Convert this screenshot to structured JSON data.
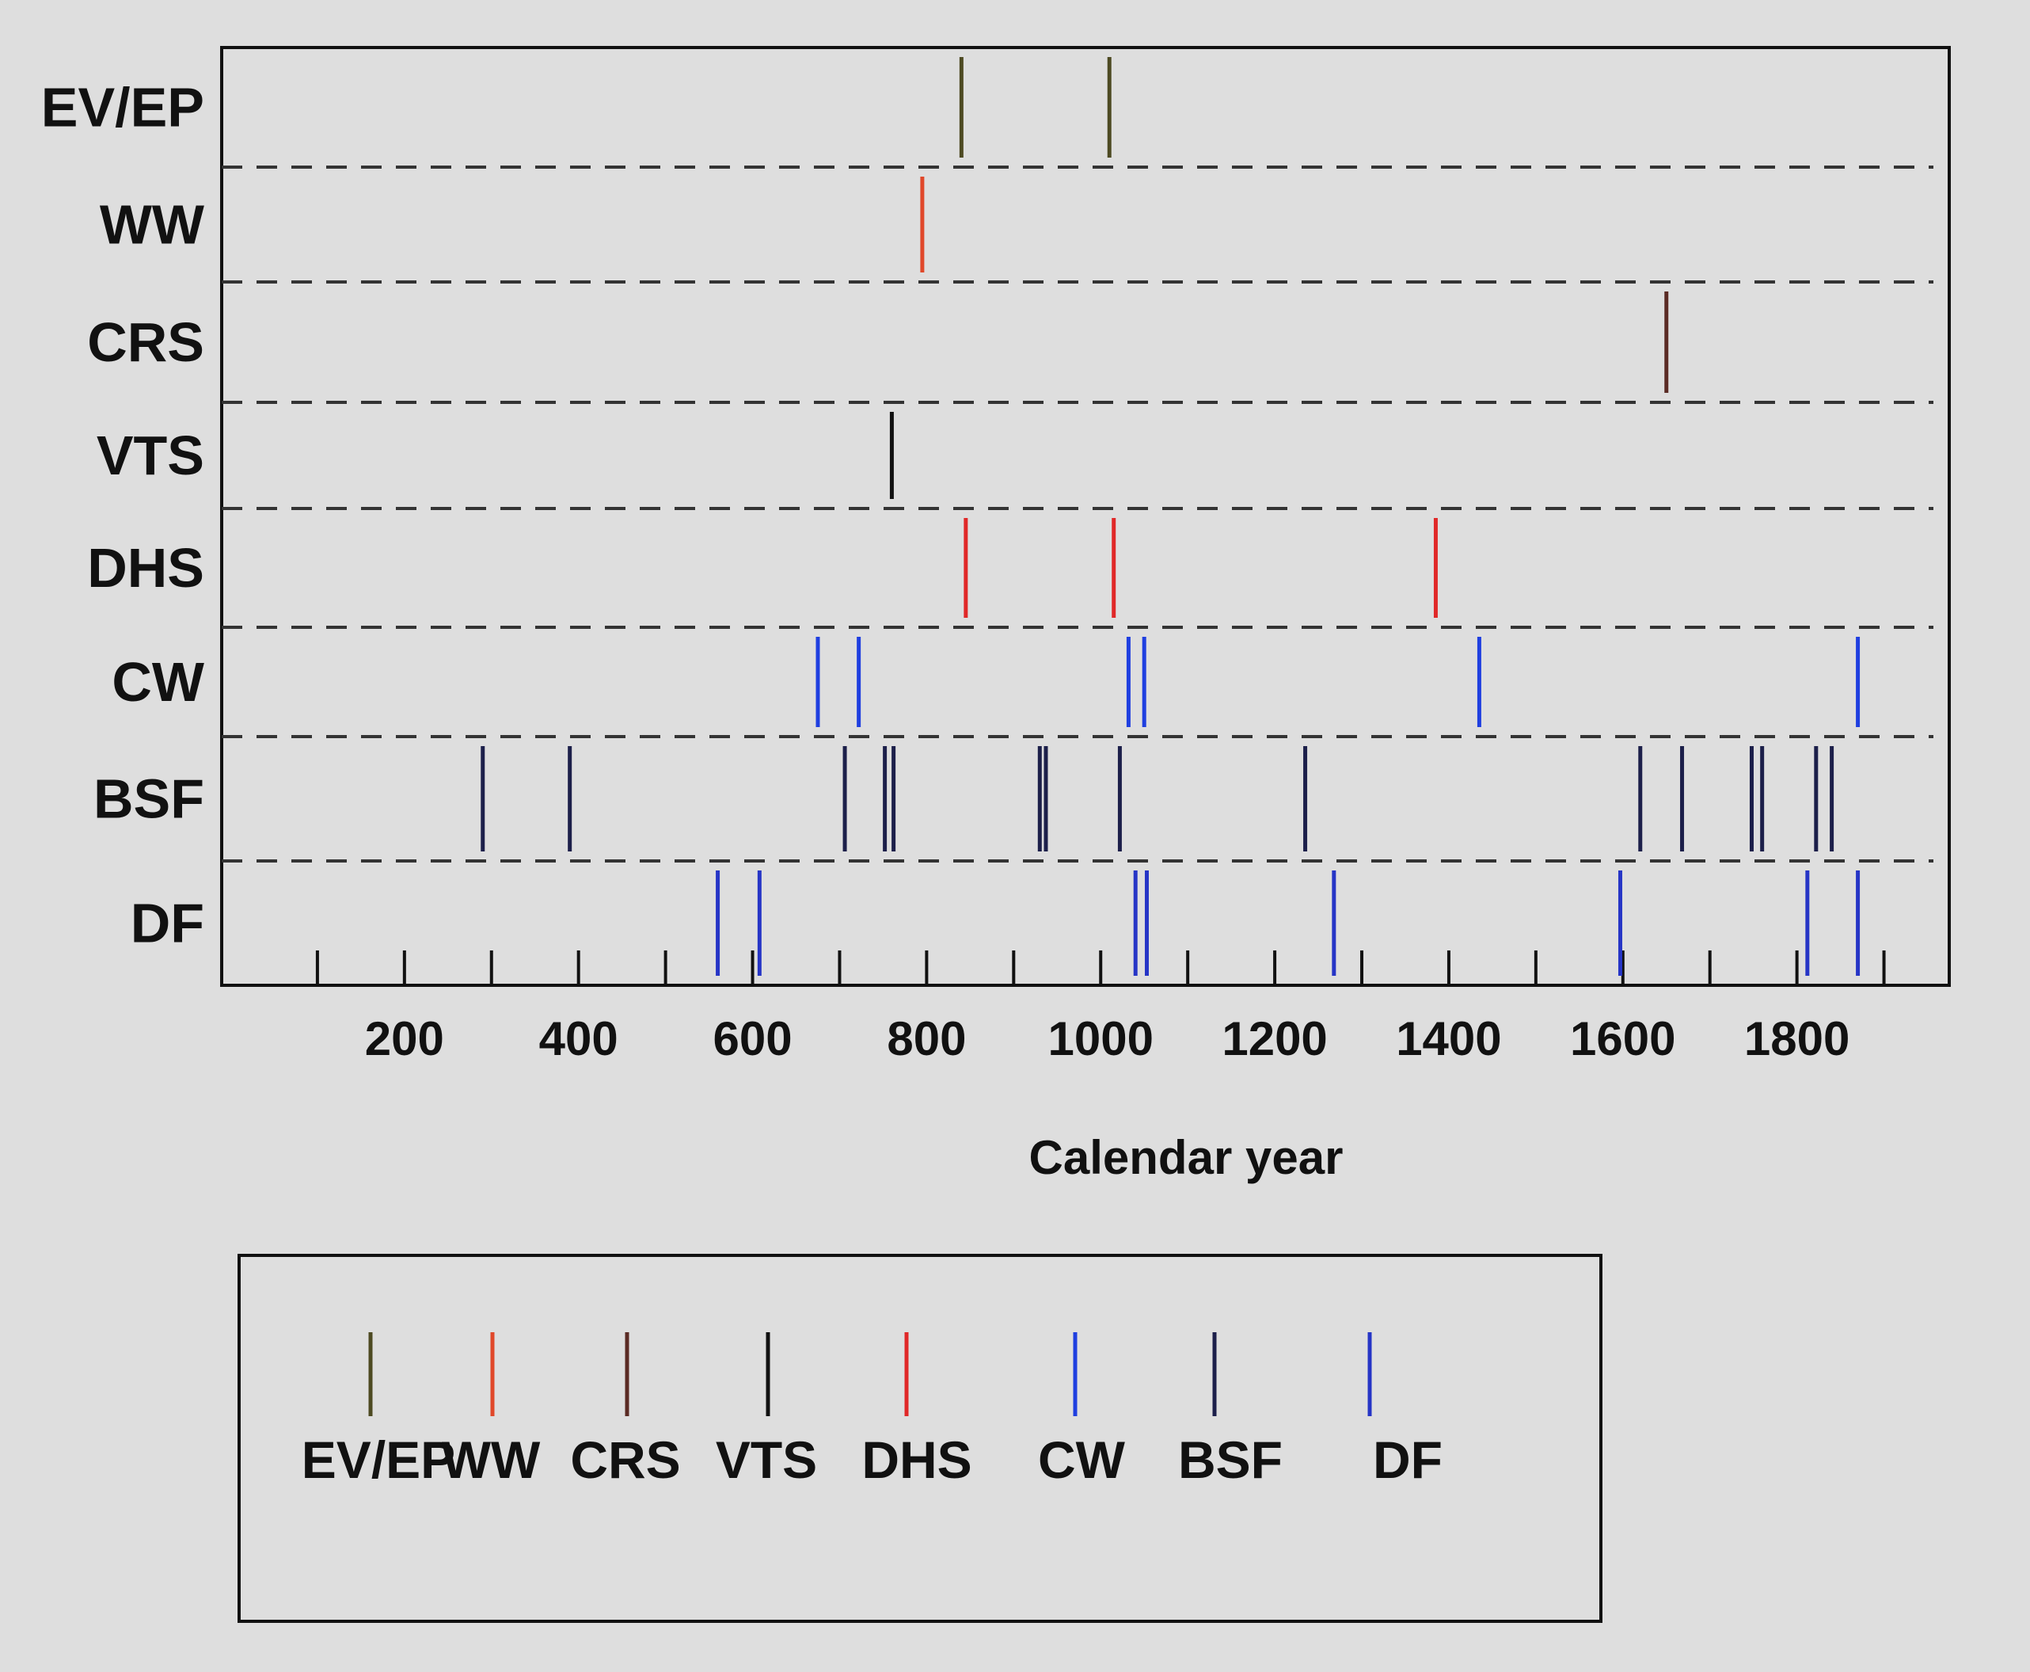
{
  "chart_data": {
    "type": "scatter",
    "xlabel": "Calendar year",
    "xticks": [
      200,
      400,
      600,
      800,
      1000,
      1200,
      1400,
      1600,
      1800
    ],
    "xlim": [
      -10,
      1975
    ],
    "grid": "dashed row separators",
    "legend_placement": "below",
    "categories": [
      "EV/EP",
      "WW",
      "CRS",
      "VTS",
      "DHS",
      "CW",
      "BSF",
      "DF"
    ],
    "series": [
      {
        "name": "EV/EP",
        "color": "#4d4a22",
        "x": [
          840,
          1010
        ]
      },
      {
        "name": "WW",
        "color": "#e0482a",
        "x": [
          795
        ]
      },
      {
        "name": "CRS",
        "color": "#5a2b24",
        "x": [
          1650
        ]
      },
      {
        "name": "VTS",
        "color": "#111111",
        "x": [
          760
        ]
      },
      {
        "name": "DHS",
        "color": "#e02828",
        "x": [
          845,
          1015,
          1385
        ]
      },
      {
        "name": "CW",
        "color": "#1f3fe0",
        "x": [
          675,
          722,
          1032,
          1050,
          1435,
          1870
        ]
      },
      {
        "name": "BSF",
        "color": "#1c1f4a",
        "x": [
          290,
          390,
          706,
          752,
          762,
          930,
          937,
          1022,
          1235,
          1620,
          1668,
          1748,
          1760,
          1822,
          1840
        ]
      },
      {
        "name": "DF",
        "color": "#2635c6",
        "x": [
          560,
          608,
          1040,
          1053,
          1268,
          1597,
          1812,
          1870
        ]
      }
    ]
  }
}
